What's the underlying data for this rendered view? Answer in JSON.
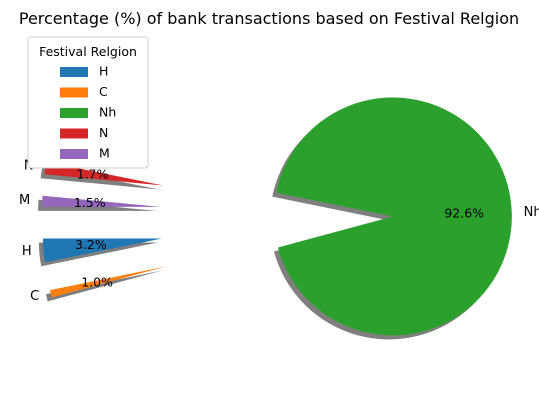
{
  "chart_data": {
    "type": "pie",
    "title": "Percentage (%) of bank transactions based on Festival Relgion",
    "legend": {
      "title": "Festival Relgion",
      "placement": "upper-left",
      "entries": [
        "H",
        "C",
        "Nh",
        "N",
        "M"
      ]
    },
    "slices": [
      {
        "label": "H",
        "value": 3.2,
        "pct_label": "3.2%",
        "color": "#1f77b4"
      },
      {
        "label": "C",
        "value": 1.0,
        "pct_label": "1.0%",
        "color": "#ff7f0e"
      },
      {
        "label": "Nh",
        "value": 92.6,
        "pct_label": "92.6%",
        "color": "#2ca02c"
      },
      {
        "label": "N",
        "value": 1.7,
        "pct_label": "1.7%",
        "color": "#d62728"
      },
      {
        "label": "M",
        "value": 1.5,
        "pct_label": "1.5%",
        "color": "#9467bd"
      }
    ],
    "shadow": true,
    "exploded": true
  }
}
